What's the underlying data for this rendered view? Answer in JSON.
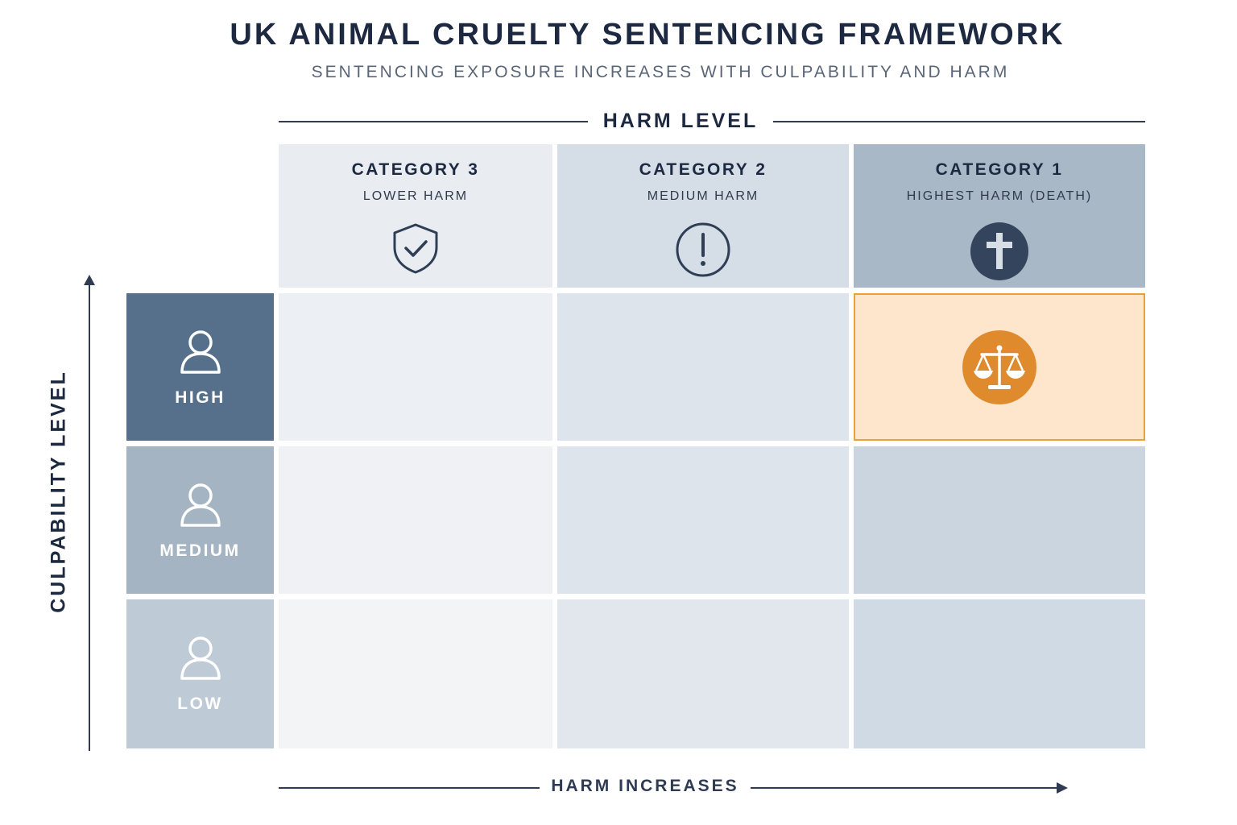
{
  "title": "UK ANIMAL CRUELTY SENTENCING FRAMEWORK",
  "subtitle": "SENTENCING EXPOSURE INCREASES WITH CULPABILITY AND HARM",
  "harm_axis": {
    "label": "HARM LEVEL",
    "direction_label": "HARM INCREASES"
  },
  "culpability_axis": {
    "label": "CULPABILITY LEVEL"
  },
  "columns": [
    {
      "category": "CATEGORY 3",
      "description": "LOWER HARM",
      "icon": "shield-check-icon",
      "color": "#e9edf1"
    },
    {
      "category": "CATEGORY 2",
      "description": "MEDIUM HARM",
      "icon": "exclamation-circle-icon",
      "color": "#d5dee7"
    },
    {
      "category": "CATEGORY 1",
      "description": "HIGHEST HARM (DEATH)",
      "icon": "cross-icon",
      "color": "#a9b8c7"
    }
  ],
  "rows": [
    {
      "label": "HIGH",
      "icon": "person-icon",
      "color": "#56708c"
    },
    {
      "label": "MEDIUM",
      "icon": "person-icon",
      "color": "#a5b4c3"
    },
    {
      "label": "LOW",
      "icon": "person-icon",
      "color": "#bfcad7"
    }
  ],
  "highlight_cell": {
    "row": "HIGH",
    "column": "CATEGORY 1",
    "icon": "scales-icon",
    "color": "#e08a2e"
  }
}
